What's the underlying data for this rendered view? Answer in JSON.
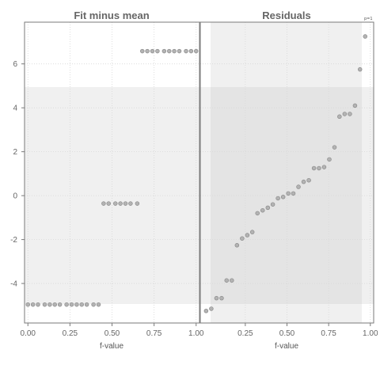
{
  "chart_data": {
    "type": "scatter",
    "title": "",
    "ylim": [
      -5.8,
      7.9
    ],
    "yticks": [
      -4,
      -2,
      0,
      2,
      4,
      6
    ],
    "grid": true,
    "panels": [
      {
        "title": "Fit minus mean",
        "xlabel": "f-value",
        "xlim": [
          -0.02,
          1.02
        ],
        "xticks": [
          "0.00",
          "0.25",
          "0.50",
          "0.75",
          "1.00"
        ],
        "points": [
          {
            "x": 0.0,
            "y": -4.96
          },
          {
            "x": 0.03,
            "y": -4.96
          },
          {
            "x": 0.06,
            "y": -4.96
          },
          {
            "x": 0.1,
            "y": -4.96
          },
          {
            "x": 0.13,
            "y": -4.96
          },
          {
            "x": 0.16,
            "y": -4.96
          },
          {
            "x": 0.19,
            "y": -4.96
          },
          {
            "x": 0.23,
            "y": -4.96
          },
          {
            "x": 0.26,
            "y": -4.96
          },
          {
            "x": 0.29,
            "y": -4.96
          },
          {
            "x": 0.32,
            "y": -4.96
          },
          {
            "x": 0.35,
            "y": -4.96
          },
          {
            "x": 0.39,
            "y": -4.96
          },
          {
            "x": 0.42,
            "y": -4.96
          },
          {
            "x": 0.45,
            "y": -0.36
          },
          {
            "x": 0.48,
            "y": -0.36
          },
          {
            "x": 0.52,
            "y": -0.36
          },
          {
            "x": 0.55,
            "y": -0.36
          },
          {
            "x": 0.58,
            "y": -0.36
          },
          {
            "x": 0.61,
            "y": -0.36
          },
          {
            "x": 0.65,
            "y": -0.36
          },
          {
            "x": 0.68,
            "y": 6.58
          },
          {
            "x": 0.71,
            "y": 6.58
          },
          {
            "x": 0.74,
            "y": 6.58
          },
          {
            "x": 0.77,
            "y": 6.58
          },
          {
            "x": 0.81,
            "y": 6.58
          },
          {
            "x": 0.84,
            "y": 6.58
          },
          {
            "x": 0.87,
            "y": 6.58
          },
          {
            "x": 0.9,
            "y": 6.58
          },
          {
            "x": 0.94,
            "y": 6.58
          },
          {
            "x": 0.97,
            "y": 6.58
          },
          {
            "x": 1.0,
            "y": 6.58
          }
        ]
      },
      {
        "title": "Residuals",
        "xlabel": "f-value",
        "xlim": [
          -0.02,
          1.02
        ],
        "xticks": [
          "0.25",
          "0.50",
          "0.75",
          "1.00"
        ],
        "points": [
          {
            "x": 0.015,
            "y": -5.25
          },
          {
            "x": 0.046,
            "y": -5.15
          },
          {
            "x": 0.077,
            "y": -4.67
          },
          {
            "x": 0.108,
            "y": -4.67
          },
          {
            "x": 0.138,
            "y": -3.86
          },
          {
            "x": 0.169,
            "y": -3.86
          },
          {
            "x": 0.2,
            "y": -2.26
          },
          {
            "x": 0.231,
            "y": -1.95
          },
          {
            "x": 0.262,
            "y": -1.8
          },
          {
            "x": 0.292,
            "y": -1.66
          },
          {
            "x": 0.323,
            "y": -0.8
          },
          {
            "x": 0.354,
            "y": -0.67
          },
          {
            "x": 0.385,
            "y": -0.55
          },
          {
            "x": 0.415,
            "y": -0.4
          },
          {
            "x": 0.446,
            "y": -0.12
          },
          {
            "x": 0.477,
            "y": -0.06
          },
          {
            "x": 0.508,
            "y": 0.1
          },
          {
            "x": 0.538,
            "y": 0.1
          },
          {
            "x": 0.569,
            "y": 0.4
          },
          {
            "x": 0.6,
            "y": 0.63
          },
          {
            "x": 0.631,
            "y": 0.7
          },
          {
            "x": 0.662,
            "y": 1.25
          },
          {
            "x": 0.692,
            "y": 1.25
          },
          {
            "x": 0.723,
            "y": 1.3
          },
          {
            "x": 0.754,
            "y": 1.65
          },
          {
            "x": 0.785,
            "y": 2.2
          },
          {
            "x": 0.815,
            "y": 3.6
          },
          {
            "x": 0.846,
            "y": 3.72
          },
          {
            "x": 0.877,
            "y": 3.72
          },
          {
            "x": 0.908,
            "y": 4.1
          },
          {
            "x": 0.938,
            "y": 5.75
          },
          {
            "x": 0.969,
            "y": 7.25
          }
        ],
        "corner_label": "p=1"
      }
    ]
  }
}
